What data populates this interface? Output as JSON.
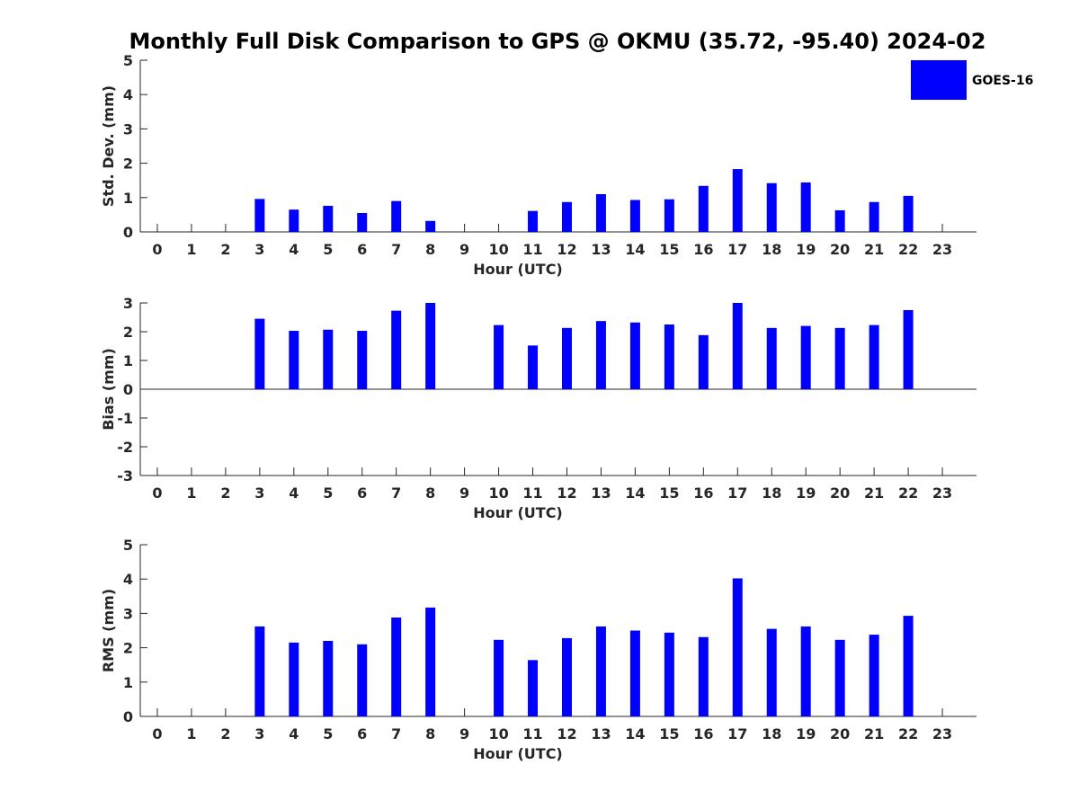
{
  "figure": {
    "title": "Monthly Full Disk Comparison to GPS @ OKMU (35.72, -95.40) 2024-02",
    "legend": {
      "label": "GOES-16",
      "color": "#0000ff",
      "placement": "top-right"
    }
  },
  "chart_data": [
    {
      "type": "bar",
      "name": "stddev",
      "categories": [
        "0",
        "1",
        "2",
        "3",
        "4",
        "5",
        "6",
        "7",
        "8",
        "9",
        "10",
        "11",
        "12",
        "13",
        "14",
        "15",
        "16",
        "17",
        "18",
        "19",
        "20",
        "21",
        "22",
        "23"
      ],
      "series": [
        {
          "name": "GOES-16",
          "color": "#0000ff",
          "values": [
            null,
            null,
            null,
            0.96,
            0.65,
            0.76,
            0.55,
            0.9,
            0.32,
            null,
            null,
            0.61,
            0.87,
            1.1,
            0.93,
            0.95,
            1.34,
            1.83,
            1.42,
            1.44,
            0.63,
            0.87,
            1.05,
            null
          ]
        }
      ],
      "xlabel": "Hour (UTC)",
      "ylabel": "Std. Dev. (mm)",
      "ylim": [
        0,
        5
      ],
      "yticks": [
        "0",
        "1",
        "2",
        "3",
        "4",
        "5"
      ],
      "grid": false
    },
    {
      "type": "bar",
      "name": "bias",
      "categories": [
        "0",
        "1",
        "2",
        "3",
        "4",
        "5",
        "6",
        "7",
        "8",
        "9",
        "10",
        "11",
        "12",
        "13",
        "14",
        "15",
        "16",
        "17",
        "18",
        "19",
        "20",
        "21",
        "22",
        "23"
      ],
      "series": [
        {
          "name": "GOES-16",
          "color": "#0000ff",
          "values": [
            null,
            null,
            null,
            2.45,
            2.03,
            2.07,
            2.03,
            2.73,
            3.0,
            null,
            2.23,
            1.52,
            2.13,
            2.37,
            2.32,
            2.25,
            1.88,
            3.0,
            2.13,
            2.2,
            2.13,
            2.23,
            2.75,
            null
          ]
        }
      ],
      "xlabel": "Hour (UTC)",
      "ylabel": "Bias (mm)",
      "ylim": [
        -3,
        3
      ],
      "yticks": [
        "-3",
        "-2",
        "-1",
        "0",
        "1",
        "2",
        "3"
      ],
      "grid": false
    },
    {
      "type": "bar",
      "name": "rms",
      "categories": [
        "0",
        "1",
        "2",
        "3",
        "4",
        "5",
        "6",
        "7",
        "8",
        "9",
        "10",
        "11",
        "12",
        "13",
        "14",
        "15",
        "16",
        "17",
        "18",
        "19",
        "20",
        "21",
        "22",
        "23"
      ],
      "series": [
        {
          "name": "GOES-16",
          "color": "#0000ff",
          "values": [
            null,
            null,
            null,
            2.62,
            2.15,
            2.2,
            2.1,
            2.88,
            3.17,
            null,
            2.23,
            1.64,
            2.28,
            2.62,
            2.5,
            2.44,
            2.31,
            4.02,
            2.55,
            2.62,
            2.23,
            2.38,
            2.93,
            null
          ]
        }
      ],
      "xlabel": "Hour (UTC)",
      "ylabel": "RMS (mm)",
      "ylim": [
        0,
        5
      ],
      "yticks": [
        "0",
        "1",
        "2",
        "3",
        "4",
        "5"
      ],
      "grid": false
    }
  ]
}
